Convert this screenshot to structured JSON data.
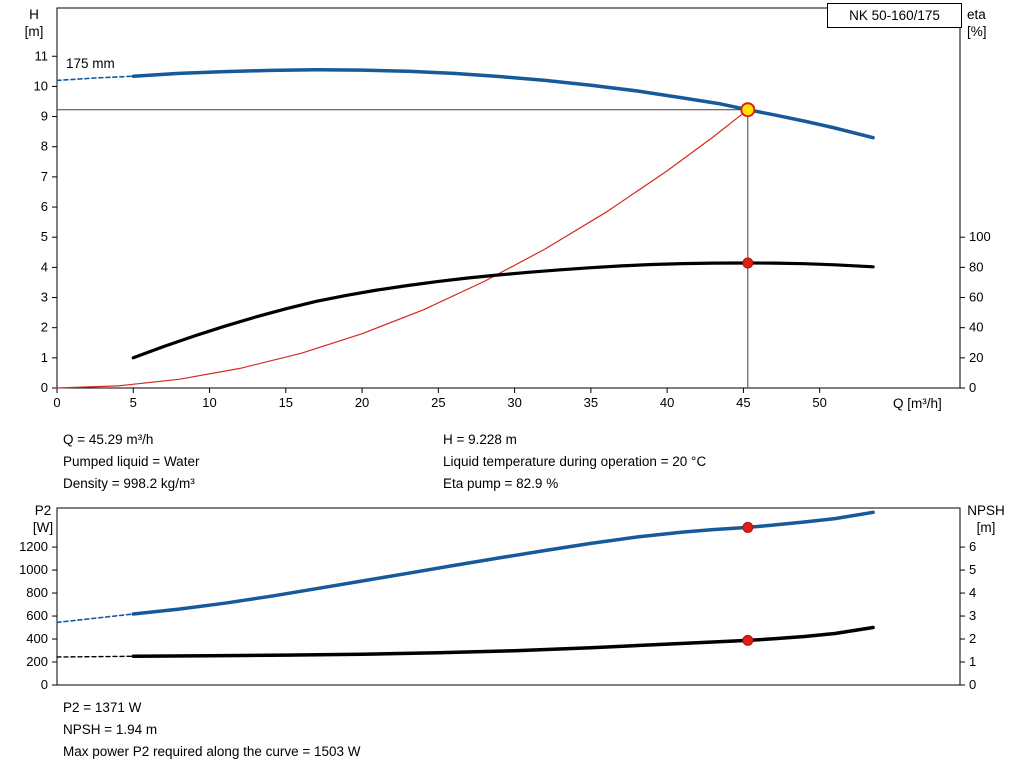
{
  "pump_model": "NK 50-160/175",
  "impeller_diameter": "175 mm",
  "operating_point": {
    "q": "Q = 45.29 m³/h",
    "pumped_liquid": "Pumped liquid = Water",
    "density": "Density = 998.2 kg/m³",
    "h": "H = 9.228 m",
    "liquid_temperature": "Liquid temperature during operation = 20 °C",
    "eta_pump": "Eta pump = 82.9 %",
    "p2": "P2 = 1371 W",
    "npsh": "NPSH = 1.94 m",
    "max_power": "Max power P2 required along the curve = 1503 W"
  },
  "chart_data": [
    {
      "id": "head-efficiency",
      "type": "line",
      "title": "Pump head and efficiency vs flow",
      "x_axis": {
        "label": "Q [m³/h]",
        "range": [
          0,
          59.2
        ],
        "ticks": [
          0,
          5,
          10,
          15,
          20,
          25,
          30,
          35,
          40,
          45,
          50
        ],
        "labels": true
      },
      "left_axis": {
        "name": "H",
        "unit": "[m]",
        "range": [
          0,
          12.6
        ],
        "ticks": [
          0,
          1,
          2,
          3,
          4,
          5,
          6,
          7,
          8,
          9,
          10,
          11
        ]
      },
      "right_axis": {
        "name": "eta",
        "unit": "[%]",
        "range": [
          0,
          252
        ],
        "ticks": [
          0,
          20,
          40,
          60,
          80,
          100
        ]
      },
      "duty": {
        "q": 45.29,
        "h": 9.228
      },
      "series": [
        {
          "name": "system-curve",
          "axis": "left",
          "color": "#d42a1e",
          "width": 1.2,
          "points": [
            [
              0,
              0
            ],
            [
              4,
              0.07
            ],
            [
              8,
              0.29
            ],
            [
              12,
              0.65
            ],
            [
              16,
              1.15
            ],
            [
              20,
              1.8
            ],
            [
              24,
              2.59
            ],
            [
              28,
              3.53
            ],
            [
              32,
              4.61
            ],
            [
              36,
              5.83
            ],
            [
              40,
              7.2
            ],
            [
              43,
              8.32
            ],
            [
              45.29,
              9.228
            ]
          ]
        },
        {
          "name": "efficiency-curve",
          "axis": "right",
          "color": "#000000",
          "width": 3.2,
          "points": [
            [
              5,
              20
            ],
            [
              7,
              27.5
            ],
            [
              9,
              34.5
            ],
            [
              11,
              41
            ],
            [
              13,
              47
            ],
            [
              15,
              52.5
            ],
            [
              17,
              57.5
            ],
            [
              19,
              61.5
            ],
            [
              21,
              65
            ],
            [
              23,
              68
            ],
            [
              25,
              70.7
            ],
            [
              27,
              73
            ],
            [
              29,
              75
            ],
            [
              31,
              76.8
            ],
            [
              33,
              78.4
            ],
            [
              35,
              79.8
            ],
            [
              37,
              81
            ],
            [
              39,
              81.9
            ],
            [
              41,
              82.5
            ],
            [
              43,
              82.8
            ],
            [
              45.29,
              82.9
            ],
            [
              47,
              82.8
            ],
            [
              49,
              82.4
            ],
            [
              51,
              81.7
            ],
            [
              53.5,
              80.4
            ]
          ]
        },
        {
          "name": "head-curve-dashed",
          "axis": "left",
          "color": "#175a9b",
          "width": 1.6,
          "dash": "4 3",
          "points": [
            [
              0,
              10.2
            ],
            [
              2.5,
              10.28
            ],
            [
              5,
              10.34
            ]
          ]
        },
        {
          "name": "head-curve-175mm",
          "axis": "left",
          "color": "#175a9b",
          "width": 3.5,
          "points": [
            [
              5,
              10.34
            ],
            [
              8,
              10.43
            ],
            [
              11,
              10.49
            ],
            [
              14,
              10.53
            ],
            [
              17,
              10.55
            ],
            [
              20,
              10.54
            ],
            [
              23,
              10.5
            ],
            [
              26,
              10.43
            ],
            [
              29,
              10.33
            ],
            [
              32,
              10.2
            ],
            [
              35,
              10.04
            ],
            [
              38,
              9.85
            ],
            [
              41,
              9.62
            ],
            [
              43.5,
              9.42
            ],
            [
              45.29,
              9.228
            ],
            [
              47,
              9.06
            ],
            [
              49,
              8.85
            ],
            [
              51,
              8.62
            ],
            [
              53.5,
              8.3
            ]
          ]
        }
      ],
      "markers": [
        {
          "name": "duty-point-efficiency",
          "axis": "right",
          "x": 45.29,
          "y": 82.9,
          "r": 5,
          "fill": "#e01e16",
          "stroke": "#b01310",
          "stroke_width": 1
        },
        {
          "name": "duty-point-head",
          "axis": "left",
          "x": 45.29,
          "y": 9.228,
          "r": 6.5,
          "fill": "#ffe400",
          "stroke": "#e01e16",
          "stroke_width": 2
        }
      ]
    },
    {
      "id": "power-npsh",
      "type": "line",
      "title": "Power P2 and NPSH vs flow",
      "x_axis": {
        "label": "",
        "range": [
          0,
          59.2
        ],
        "ticks": [],
        "labels": false
      },
      "left_axis": {
        "name": "P2",
        "unit": "[W]",
        "range": [
          0,
          1540
        ],
        "ticks": [
          0,
          200,
          400,
          600,
          800,
          1000,
          1200
        ]
      },
      "right_axis": {
        "name": "NPSH",
        "unit": "[m]",
        "range": [
          0,
          7.7
        ],
        "ticks": [
          0,
          1,
          2,
          3,
          4,
          5,
          6
        ]
      },
      "series": [
        {
          "name": "p2-curve-dashed",
          "axis": "left",
          "color": "#175a9b",
          "width": 1.6,
          "dash": "4 3",
          "points": [
            [
              0,
              545
            ],
            [
              5,
              618
            ]
          ]
        },
        {
          "name": "p2-curve",
          "axis": "left",
          "color": "#175a9b",
          "width": 3.5,
          "points": [
            [
              5,
              618
            ],
            [
              8,
              660
            ],
            [
              11,
              712
            ],
            [
              14,
              772
            ],
            [
              17,
              838
            ],
            [
              20,
              905
            ],
            [
              23,
              972
            ],
            [
              26,
              1040
            ],
            [
              29,
              1106
            ],
            [
              32,
              1170
            ],
            [
              35,
              1232
            ],
            [
              38,
              1288
            ],
            [
              41,
              1330
            ],
            [
              43,
              1352
            ],
            [
              45.29,
              1371
            ],
            [
              47,
              1392
            ],
            [
              49,
              1418
            ],
            [
              51,
              1448
            ],
            [
              53.5,
              1503
            ]
          ]
        },
        {
          "name": "npsh-curve-dashed",
          "axis": "right",
          "color": "#000000",
          "width": 1.4,
          "dash": "4 3",
          "points": [
            [
              0,
              1.22
            ],
            [
              5,
              1.25
            ]
          ]
        },
        {
          "name": "npsh-curve",
          "axis": "right",
          "color": "#000000",
          "width": 3.5,
          "points": [
            [
              5,
              1.25
            ],
            [
              10,
              1.27
            ],
            [
              15,
              1.3
            ],
            [
              20,
              1.34
            ],
            [
              25,
              1.4
            ],
            [
              30,
              1.49
            ],
            [
              35,
              1.62
            ],
            [
              40,
              1.78
            ],
            [
              43,
              1.87
            ],
            [
              45.29,
              1.94
            ],
            [
              47,
              2.01
            ],
            [
              49,
              2.11
            ],
            [
              51,
              2.24
            ],
            [
              53.5,
              2.5
            ]
          ]
        }
      ],
      "markers": [
        {
          "name": "duty-point-p2",
          "axis": "left",
          "x": 45.29,
          "y": 1371,
          "r": 5,
          "fill": "#e01e16",
          "stroke": "#b01310",
          "stroke_width": 1
        },
        {
          "name": "duty-point-npsh",
          "axis": "right",
          "x": 45.29,
          "y": 1.94,
          "r": 5,
          "fill": "#e01e16",
          "stroke": "#b01310",
          "stroke_width": 1
        }
      ]
    }
  ]
}
